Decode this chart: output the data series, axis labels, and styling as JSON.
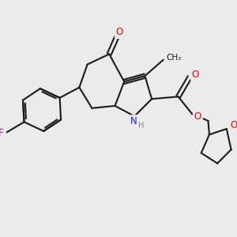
{
  "bg_color": "#ebebeb",
  "bond_color": "#1a1a1a",
  "bond_width": 1.5,
  "atom_colors": {
    "O": "#e00000",
    "N": "#2020ff",
    "F": "#cc00cc",
    "C": "#1a1a1a"
  },
  "font_size_atom": 8.5,
  "font_size_methyl": 7.5
}
